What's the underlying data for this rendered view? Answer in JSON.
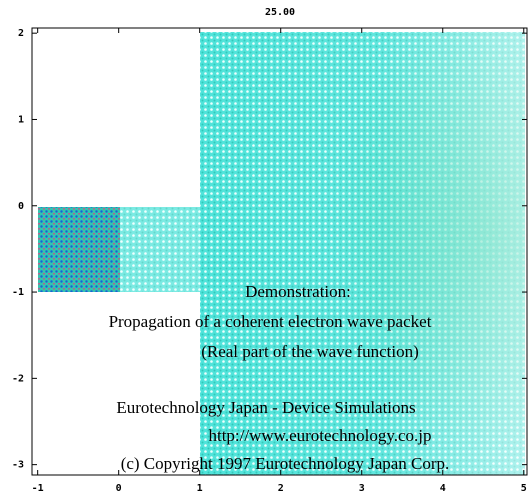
{
  "chart_data": {
    "type": "heatmap",
    "title": "25.00",
    "xlim": [
      -1.07,
      5.04
    ],
    "xticks": [
      -1,
      0,
      1,
      2,
      3,
      4,
      5
    ],
    "ylim": [
      -3.12,
      2.06
    ],
    "yticks": [
      -3,
      -2,
      -1,
      0,
      1,
      2
    ],
    "annotations": [
      "Demonstration:",
      "Propagation of a coherent electron wave packet",
      "(Real part of the wave function)",
      "Eurotechnology Japan - Device Simulations",
      "http://www.eurotechnology.co.jp",
      "(c) Copyright 1997 Eurotechnology Japan Corp."
    ]
  }
}
